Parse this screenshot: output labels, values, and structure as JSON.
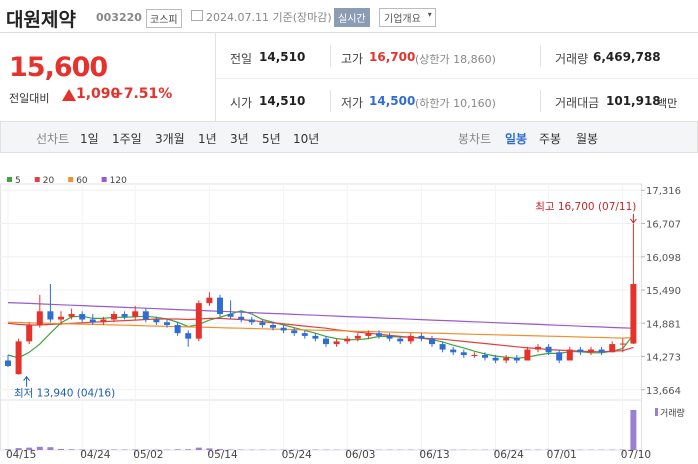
{
  "header": {
    "name": "대원제약",
    "code": "003220",
    "market": "코스피",
    "date": "2024.07.11 기준(장마감)",
    "realtime": "실시간",
    "overview": "기업개요"
  },
  "quote": {
    "price": "15,600",
    "change_label": "전일대비",
    "change": "1,090",
    "change_pct": "+7.51%"
  },
  "stats": [
    [
      {
        "label": "전일",
        "value": "14,510"
      },
      {
        "label": "고가",
        "value": "16,700",
        "extra": "(상한가 18,860)"
      },
      {
        "label": "거래량",
        "value": "6,469,788"
      }
    ],
    [
      {
        "label": "시가",
        "value": "14,510"
      },
      {
        "label": "저가",
        "value": "14,500",
        "extra": "(하한가 10,160)"
      },
      {
        "label": "거래대금",
        "value": "101,918",
        "extra": "백만"
      }
    ]
  ],
  "tabs": {
    "line_label": "선차트",
    "line_periods": [
      "1일",
      "1주일",
      "3개월",
      "1년",
      "3년",
      "5년",
      "10년"
    ],
    "candle_label": "봉차트",
    "candle_periods": [
      "일봉",
      "주봉",
      "월봉"
    ]
  },
  "chart_data": {
    "type": "candlestick",
    "up_color": "#e5322d",
    "down_color": "#2f6dd5",
    "volume_color": "#9b7fd4",
    "volume_label": "거래량",
    "grid": true,
    "categories": [
      "04/15",
      null,
      null,
      null,
      null,
      null,
      null,
      "04/24",
      null,
      null,
      null,
      null,
      "05/02",
      null,
      null,
      null,
      null,
      null,
      null,
      "05/14",
      null,
      null,
      null,
      null,
      null,
      null,
      "05/24",
      null,
      null,
      null,
      null,
      null,
      "06/03",
      null,
      null,
      null,
      null,
      null,
      null,
      "06/13",
      null,
      null,
      null,
      null,
      null,
      null,
      "06/24",
      null,
      null,
      null,
      null,
      "07/01",
      null,
      null,
      null,
      null,
      null,
      null,
      "07/10",
      null
    ],
    "open": [
      14200,
      13950,
      14550,
      14850,
      15100,
      14950,
      15000,
      15050,
      14950,
      14900,
      14950,
      15050,
      15000,
      15100,
      14950,
      14900,
      14850,
      14700,
      14600,
      15250,
      15350,
      15050,
      15000,
      14950,
      14900,
      14850,
      14800,
      14750,
      14700,
      14650,
      14600,
      14500,
      14550,
      14600,
      14650,
      14700,
      14650,
      14600,
      14550,
      14650,
      14600,
      14500,
      14400,
      14350,
      14300,
      14300,
      14250,
      14200,
      14250,
      14200,
      14400,
      14450,
      14350,
      14200,
      14400,
      14350,
      14400,
      14350,
      14500,
      14510
    ],
    "high": [
      14300,
      14600,
      14900,
      15400,
      15600,
      15100,
      15150,
      15100,
      15050,
      15000,
      15100,
      15100,
      15200,
      15150,
      15000,
      14950,
      14900,
      14750,
      15300,
      15450,
      15400,
      15300,
      15100,
      15000,
      14950,
      14900,
      14850,
      14800,
      14750,
      14700,
      14650,
      14600,
      14650,
      14700,
      14750,
      14750,
      14700,
      14650,
      14700,
      14700,
      14650,
      14550,
      14450,
      14400,
      14350,
      14350,
      14300,
      14300,
      14300,
      14450,
      14500,
      14500,
      14400,
      14450,
      14450,
      14450,
      14450,
      14550,
      14600,
      16700
    ],
    "low": [
      14080,
      13940,
      14500,
      14800,
      14900,
      14850,
      14950,
      14900,
      14850,
      14850,
      14900,
      14950,
      14950,
      14900,
      14850,
      14800,
      14650,
      14450,
      14550,
      15200,
      15000,
      14950,
      14900,
      14850,
      14800,
      14750,
      14700,
      14650,
      14600,
      14550,
      14450,
      14450,
      14500,
      14550,
      14600,
      14600,
      14550,
      14500,
      14500,
      14550,
      14450,
      14350,
      14300,
      14250,
      14250,
      14200,
      14150,
      14150,
      14150,
      14200,
      14350,
      14300,
      14150,
      14200,
      14300,
      14300,
      14300,
      14350,
      14350,
      14500
    ],
    "close": [
      14100,
      14550,
      14850,
      15100,
      14950,
      15000,
      15050,
      14950,
      14900,
      14950,
      15050,
      15000,
      15100,
      14950,
      14900,
      14850,
      14700,
      14600,
      15250,
      15350,
      15050,
      15000,
      14950,
      14900,
      14850,
      14800,
      14750,
      14700,
      14650,
      14600,
      14500,
      14550,
      14600,
      14650,
      14700,
      14650,
      14600,
      14550,
      14650,
      14600,
      14500,
      14400,
      14350,
      14300,
      14300,
      14250,
      14200,
      14250,
      14200,
      14400,
      14450,
      14350,
      14200,
      14400,
      14350,
      14400,
      14350,
      14500,
      14510,
      15600
    ],
    "volume": [
      120000,
      310000,
      380000,
      520000,
      450000,
      160000,
      110000,
      90000,
      80000,
      70000,
      80000,
      70000,
      90000,
      80000,
      60000,
      60000,
      110000,
      120000,
      380000,
      260000,
      150000,
      90000,
      70000,
      60000,
      60000,
      50000,
      50000,
      60000,
      60000,
      70000,
      60000,
      50000,
      50000,
      60000,
      50000,
      50000,
      60000,
      50000,
      60000,
      50000,
      60000,
      80000,
      60000,
      50000,
      40000,
      50000,
      50000,
      40000,
      40000,
      70000,
      60000,
      60000,
      80000,
      70000,
      50000,
      50000,
      50000,
      60000,
      80000,
      6469788
    ],
    "series": [
      {
        "name": "5",
        "color": "#3ca53c",
        "values": [
          14300,
          14250,
          14350,
          14500,
          14700,
          14890,
          15000,
          15010,
          14970,
          14970,
          14990,
          14990,
          15000,
          15010,
          14990,
          14960,
          14900,
          14820,
          14860,
          14940,
          14990,
          15050,
          15110,
          15050,
          14950,
          14900,
          14850,
          14800,
          14750,
          14700,
          14640,
          14600,
          14580,
          14580,
          14600,
          14640,
          14640,
          14630,
          14630,
          14610,
          14580,
          14540,
          14480,
          14430,
          14370,
          14320,
          14280,
          14260,
          14240,
          14260,
          14300,
          14330,
          14330,
          14360,
          14360,
          14340,
          14340,
          14370,
          14420,
          14670
        ]
      },
      {
        "name": "20",
        "color": "#e04040",
        "values": [
          14880,
          14860,
          14850,
          14850,
          14860,
          14870,
          14880,
          14890,
          14900,
          14910,
          14920,
          14930,
          14940,
          14950,
          14960,
          14960,
          14960,
          14950,
          14960,
          14970,
          14970,
          14960,
          14950,
          14930,
          14910,
          14890,
          14870,
          14850,
          14830,
          14810,
          14790,
          14760,
          14740,
          14720,
          14700,
          14680,
          14660,
          14640,
          14620,
          14610,
          14600,
          14590,
          14570,
          14550,
          14530,
          14510,
          14490,
          14470,
          14450,
          14430,
          14420,
          14400,
          14390,
          14380,
          14370,
          14360,
          14360,
          14370,
          14380,
          14440
        ]
      },
      {
        "name": "60",
        "color": "#f09030",
        "values": [
          14900,
          14895,
          14890,
          14885,
          14880,
          14875,
          14870,
          14865,
          14860,
          14855,
          14850,
          14845,
          14840,
          14835,
          14830,
          14825,
          14820,
          14815,
          14810,
          14805,
          14800,
          14795,
          14790,
          14785,
          14780,
          14775,
          14770,
          14765,
          14760,
          14755,
          14750,
          14745,
          14740,
          14735,
          14730,
          14725,
          14720,
          14715,
          14710,
          14705,
          14700,
          14695,
          14690,
          14685,
          14680,
          14675,
          14670,
          14665,
          14660,
          14655,
          14650,
          14645,
          14640,
          14635,
          14630,
          14625,
          14620,
          14615,
          14610,
          14620
        ]
      },
      {
        "name": "120",
        "color": "#9b59d0",
        "values": [
          15260,
          15252,
          15244,
          15236,
          15228,
          15220,
          15212,
          15204,
          15196,
          15188,
          15180,
          15172,
          15164,
          15156,
          15148,
          15140,
          15132,
          15124,
          15116,
          15108,
          15100,
          15092,
          15084,
          15076,
          15068,
          15060,
          15052,
          15044,
          15036,
          15028,
          15020,
          15012,
          15004,
          14996,
          14988,
          14980,
          14972,
          14964,
          14956,
          14948,
          14940,
          14932,
          14924,
          14916,
          14908,
          14900,
          14892,
          14884,
          14876,
          14868,
          14860,
          14852,
          14844,
          14836,
          14828,
          14820,
          14812,
          14804,
          14796,
          14790
        ]
      }
    ],
    "ylim": [
      13550,
      17430
    ],
    "yticks": [
      {
        "value": 13664,
        "label": "13,664"
      },
      {
        "value": 14273,
        "label": "14,273"
      },
      {
        "value": 14881,
        "label": "14,881"
      },
      {
        "value": 15490,
        "label": "15,490"
      },
      {
        "value": 16098,
        "label": "16,098"
      },
      {
        "value": 16707,
        "label": "16,707"
      },
      {
        "value": 17316,
        "label": "17,316"
      }
    ],
    "annotations": {
      "high": "최고 16,700 (07/11)",
      "low": "최저 13,940 (04/16)"
    }
  }
}
